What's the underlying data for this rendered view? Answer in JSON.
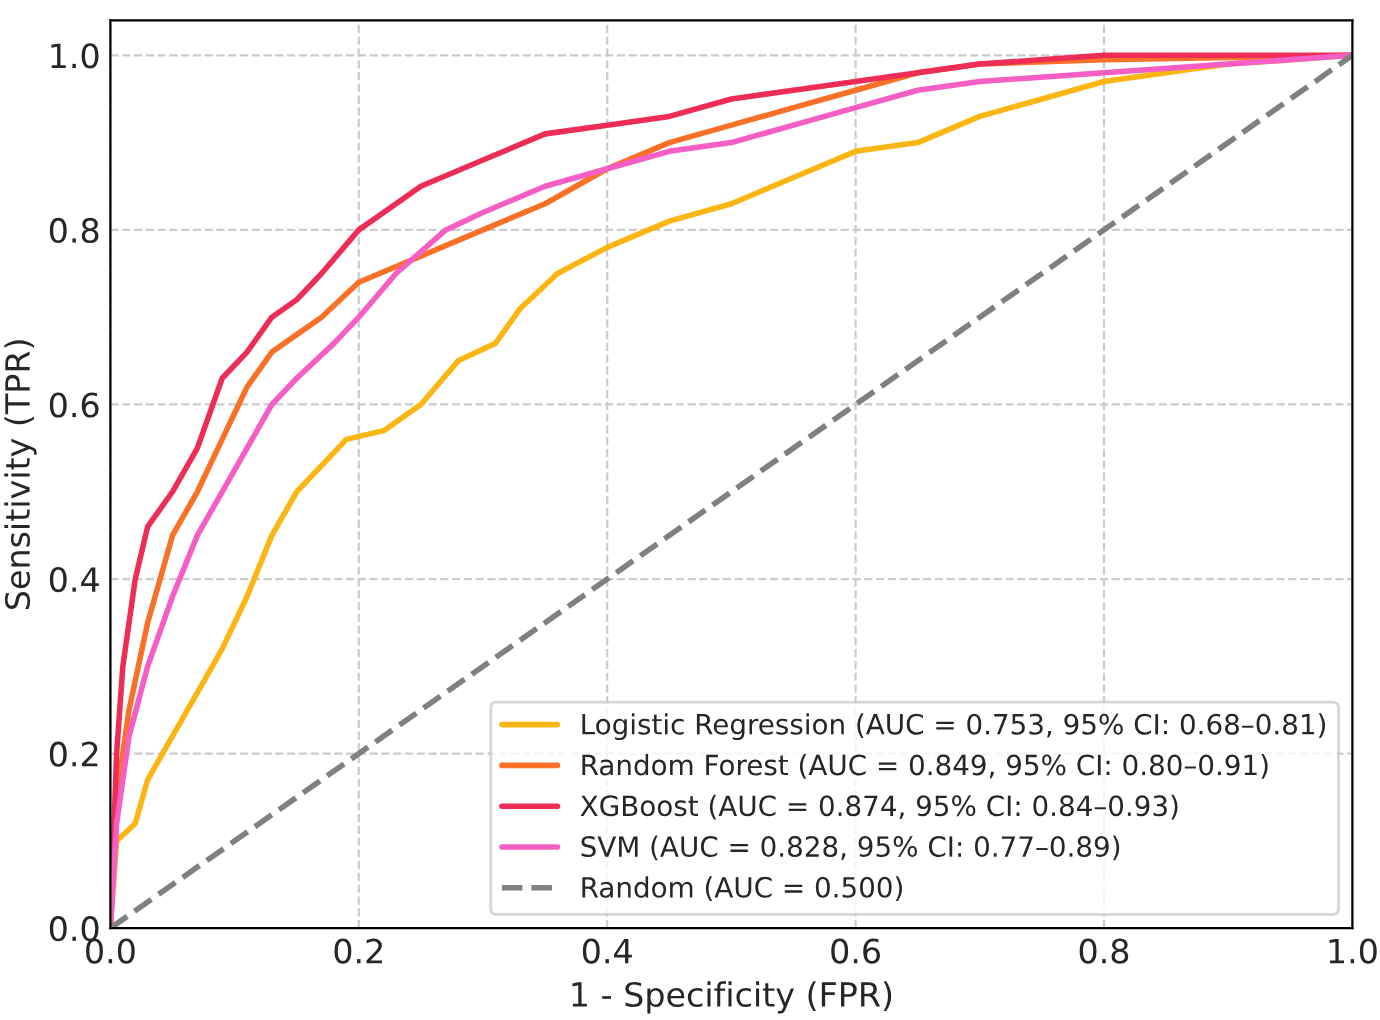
{
  "chart_data": {
    "type": "line",
    "xlabel": "1 - Specificity (FPR)",
    "ylabel": "Sensitivity (TPR)",
    "xlim": [
      0,
      1
    ],
    "ylim": [
      0,
      1.04
    ],
    "xticks": [
      {
        "value": 0,
        "label": "0.0"
      },
      0.2,
      0.4,
      0.6,
      0.8,
      {
        "value": 1,
        "label": "1.0"
      }
    ],
    "yticks": [
      {
        "value": 0,
        "label": "0.0"
      },
      0.2,
      0.4,
      0.6,
      0.8,
      {
        "value": 1,
        "label": "1.0"
      }
    ],
    "grid": true,
    "legend": "bottom right",
    "marker": "none",
    "series": [
      {
        "name": "Logistic Regression (AUC = 0.753, 95% CI: 0.68–0.81)",
        "color": "#fbb614",
        "line_style": "solid",
        "x": [
          0,
          0.005,
          0.02,
          0.03,
          0.05,
          0.07,
          0.09,
          0.11,
          0.13,
          0.15,
          0.17,
          0.19,
          0.22,
          0.25,
          0.28,
          0.31,
          0.33,
          0.36,
          0.4,
          0.45,
          0.5,
          0.55,
          0.6,
          0.65,
          0.7,
          0.75,
          0.8,
          0.85,
          0.9,
          0.95,
          1
        ],
        "values": [
          0,
          0.1,
          0.12,
          0.17,
          0.22,
          0.27,
          0.32,
          0.38,
          0.45,
          0.5,
          0.53,
          0.56,
          0.57,
          0.6,
          0.65,
          0.67,
          0.71,
          0.75,
          0.78,
          0.81,
          0.83,
          0.86,
          0.89,
          0.9,
          0.93,
          0.95,
          0.97,
          0.98,
          0.99,
          0.995,
          1
        ]
      },
      {
        "name": "Random Forest (AUC = 0.849, 95% CI: 0.80–0.91)",
        "color": "#f97026",
        "line_style": "solid",
        "x": [
          0,
          0.005,
          0.015,
          0.03,
          0.05,
          0.07,
          0.09,
          0.11,
          0.13,
          0.15,
          0.17,
          0.2,
          0.25,
          0.3,
          0.35,
          0.4,
          0.45,
          0.5,
          0.55,
          0.6,
          0.65,
          0.7,
          0.8,
          1
        ],
        "values": [
          0,
          0.15,
          0.25,
          0.35,
          0.45,
          0.5,
          0.56,
          0.62,
          0.66,
          0.68,
          0.7,
          0.74,
          0.77,
          0.8,
          0.83,
          0.87,
          0.9,
          0.92,
          0.94,
          0.96,
          0.98,
          0.99,
          0.995,
          1
        ]
      },
      {
        "name": "XGBoost (AUC = 0.874, 95% CI: 0.84–0.93)",
        "color": "#ee2d56",
        "line_style": "solid",
        "x": [
          0,
          0.005,
          0.01,
          0.02,
          0.03,
          0.05,
          0.07,
          0.09,
          0.11,
          0.13,
          0.15,
          0.17,
          0.2,
          0.22,
          0.25,
          0.3,
          0.35,
          0.4,
          0.45,
          0.5,
          0.55,
          0.6,
          0.65,
          0.7,
          0.8,
          1
        ],
        "values": [
          0,
          0.2,
          0.3,
          0.4,
          0.46,
          0.5,
          0.55,
          0.63,
          0.66,
          0.7,
          0.72,
          0.75,
          0.8,
          0.82,
          0.85,
          0.88,
          0.91,
          0.92,
          0.93,
          0.95,
          0.96,
          0.97,
          0.98,
          0.99,
          1.0,
          1
        ]
      },
      {
        "name": "SVM (AUC = 0.828, 95% CI: 0.77–0.89)",
        "color": "#f55ec4",
        "line_style": "solid",
        "x": [
          0,
          0.005,
          0.015,
          0.03,
          0.05,
          0.07,
          0.09,
          0.11,
          0.13,
          0.15,
          0.18,
          0.2,
          0.23,
          0.27,
          0.3,
          0.35,
          0.4,
          0.45,
          0.5,
          0.55,
          0.6,
          0.65,
          0.7,
          0.8,
          0.9,
          1
        ],
        "values": [
          0,
          0.12,
          0.22,
          0.3,
          0.38,
          0.45,
          0.5,
          0.55,
          0.6,
          0.63,
          0.67,
          0.7,
          0.75,
          0.8,
          0.82,
          0.85,
          0.87,
          0.89,
          0.9,
          0.92,
          0.94,
          0.96,
          0.97,
          0.98,
          0.99,
          1
        ]
      },
      {
        "name": "Random (AUC = 0.500)",
        "color": "#808080",
        "line_style": "dashed",
        "x": [
          0,
          1
        ],
        "values": [
          0,
          1
        ]
      }
    ]
  }
}
